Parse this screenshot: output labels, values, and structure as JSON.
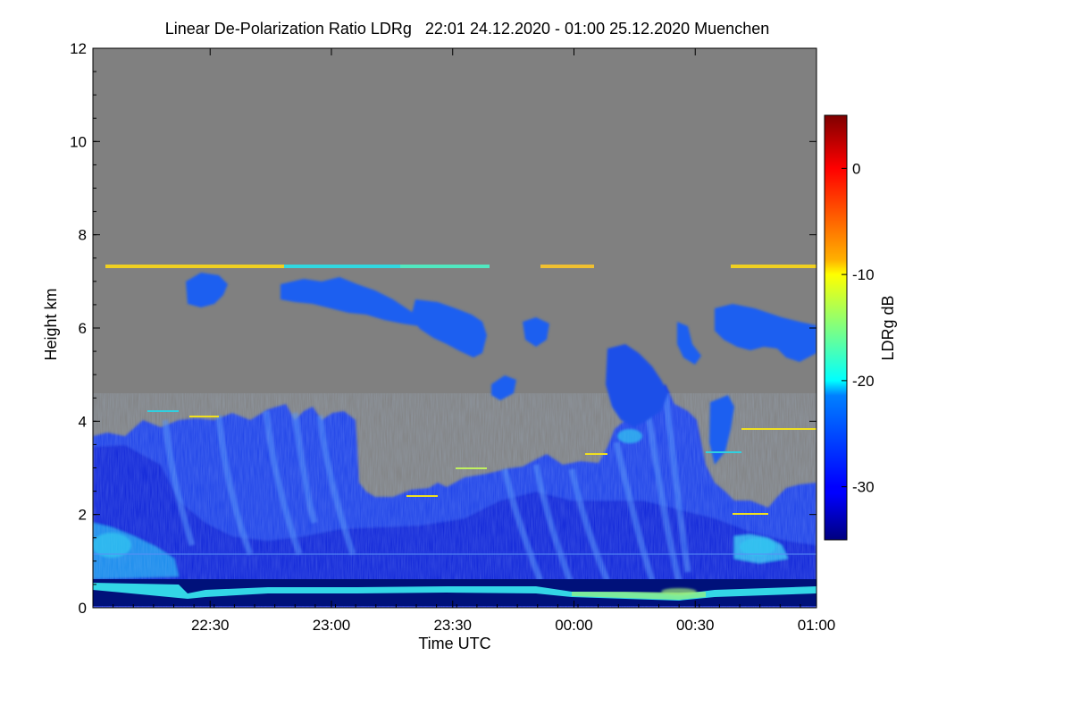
{
  "chart_data": {
    "type": "heatmap",
    "title": "Linear De-Polarization Ratio LDRg   22:01 24.12.2020 - 01:00 25.12.2020 Muenchen",
    "xlabel": "Time UTC",
    "ylabel": "Height km",
    "xlim": [
      "22:01",
      "01:00"
    ],
    "xlim_minutes": [
      0,
      179
    ],
    "xticks": [
      {
        "label": "22:30",
        "minute": 29
      },
      {
        "label": "23:00",
        "minute": 59
      },
      {
        "label": "23:30",
        "minute": 89
      },
      {
        "label": "00:00",
        "minute": 119
      },
      {
        "label": "00:30",
        "minute": 149
      },
      {
        "label": "01:00",
        "minute": 179
      }
    ],
    "ylim": [
      0,
      12
    ],
    "yticks": [
      0,
      2,
      4,
      6,
      8,
      10,
      12
    ],
    "colorbar": {
      "label": "LDRg dB",
      "range": [
        -35,
        5
      ],
      "ticks": [
        0,
        -10,
        -20,
        -30
      ],
      "tick_labels": [
        "0",
        "-10",
        "-20",
        "-30"
      ],
      "colormap": "jet"
    },
    "no_data_color": "#808080",
    "grid": false,
    "features": [
      {
        "description_layer": "near-surface high LDR band",
        "height_km": [
          0.15,
          0.35
        ],
        "ldr_db": -24
      },
      {
        "description_layer": "boundary layer / low cloud",
        "height_km": [
          0.4,
          3.7
        ],
        "ldr_db": -30
      },
      {
        "description_layer": "fall streaks (virga)",
        "height_km": [
          0.5,
          4.3
        ],
        "ldr_db": -27
      },
      {
        "description_layer": "mid-level cloud",
        "height_km": [
          5.3,
          6.9
        ],
        "ldr_db": -30
      },
      {
        "description_layer": "thin ice layer",
        "height_km": [
          7.25,
          7.35
        ],
        "ldr_db": -12
      }
    ]
  }
}
